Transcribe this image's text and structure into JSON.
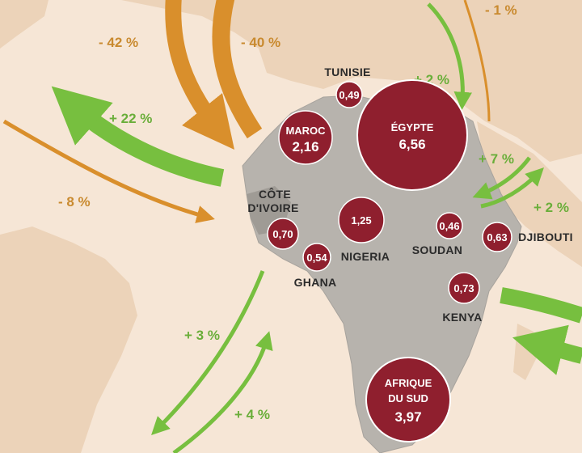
{
  "colors": {
    "sea": "#f6e6d6",
    "land": "#ecd3b9",
    "africa": "#b7b3ad",
    "bubble": "#8f1f2e",
    "growth": "#77bf3f",
    "decline": "#d98f2c"
  },
  "arrows": {
    "decline_labels": [
      "- 42 %",
      "- 40 %",
      "- 8 %",
      "- 1 %"
    ],
    "growth_labels": [
      "+ 22 %",
      "+ 2 %",
      "+ 7 %",
      "+ 2 %",
      "+ 3 %",
      "+ 4 %"
    ]
  },
  "countries": [
    {
      "name": "TUNISIE",
      "value": "0,49"
    },
    {
      "name": "ÉGYPTE",
      "value": "6,56"
    },
    {
      "name": "MAROC",
      "value": "2,16"
    },
    {
      "name": "CÔTE",
      "name2": "D'IVOIRE",
      "value": "0,70"
    },
    {
      "name": "NIGERIA",
      "value": "1,25"
    },
    {
      "name": "GHANA",
      "value": "0,54"
    },
    {
      "name": "SOUDAN",
      "value": "0,46"
    },
    {
      "name": "DJIBOUTI",
      "value": "0,63"
    },
    {
      "name": "KENYA",
      "value": "0,73"
    },
    {
      "name": "AFRIQUE",
      "name2": "DU SUD",
      "value": "3,97"
    }
  ]
}
